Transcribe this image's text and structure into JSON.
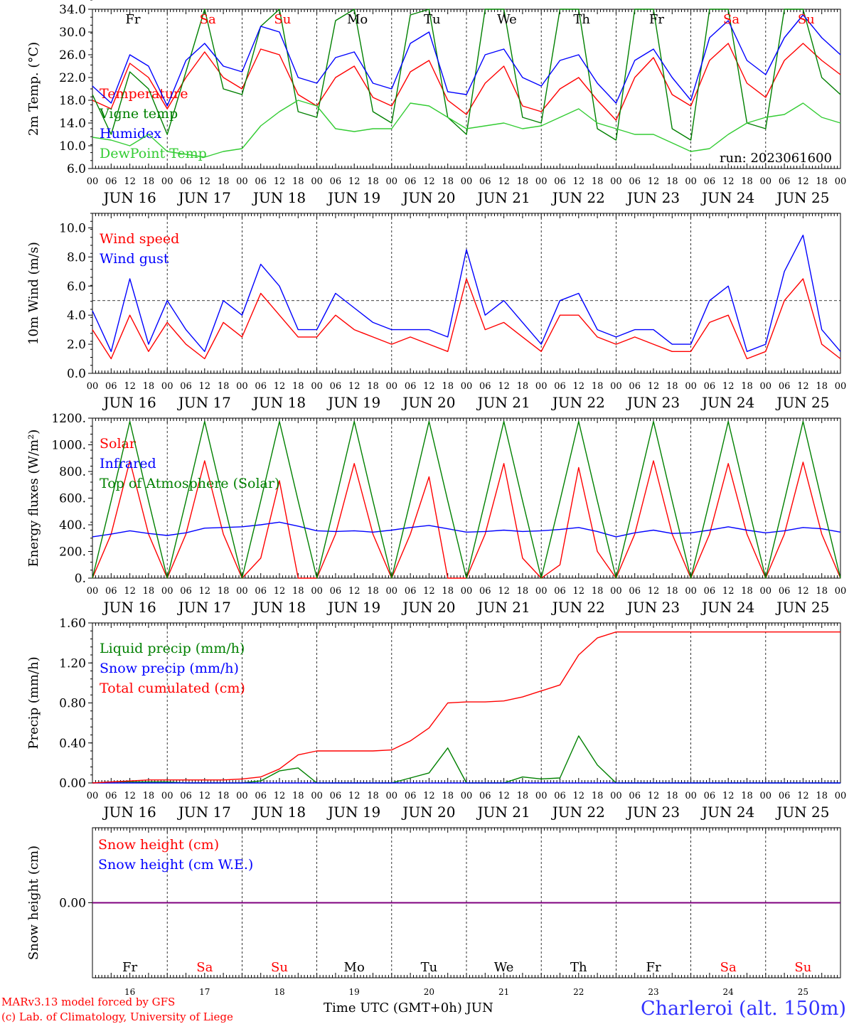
{
  "colors": {
    "red": "#ff0000",
    "green": "#008000",
    "blue": "#0000ff",
    "lime": "#33cc33",
    "purple": "#7f007f"
  },
  "hour_labels": [
    "00",
    "06",
    "12",
    "18"
  ],
  "end_hour_label": "00",
  "date_labels": [
    "JUN 16",
    "JUN 17",
    "JUN 18",
    "JUN 19",
    "JUN 20",
    "JUN 21",
    "JUN 22",
    "JUN 23",
    "JUN 24",
    "JUN 25"
  ],
  "weekdays": [
    {
      "label": "Fr",
      "weekend": false
    },
    {
      "label": "Sa",
      "weekend": true
    },
    {
      "label": "Su",
      "weekend": true
    },
    {
      "label": "Mo",
      "weekend": false
    },
    {
      "label": "Tu",
      "weekend": false
    },
    {
      "label": "We",
      "weekend": false
    },
    {
      "label": "Th",
      "weekend": false
    },
    {
      "label": "Fr",
      "weekend": false
    },
    {
      "label": "Sa",
      "weekend": true
    },
    {
      "label": "Su",
      "weekend": true
    }
  ],
  "day_numbers": [
    "16",
    "17",
    "18",
    "19",
    "20",
    "21",
    "22",
    "23",
    "24",
    "25"
  ],
  "run_label": "run: 2023061600",
  "footer": {
    "credit_1": "MARv3.13 model forced by GFS",
    "credit_2": "(c) Lab. of Climatology, University of Liege",
    "time_axis": "Time UTC (GMT+0h) JUN",
    "station": "Charleroi (alt. 150m)"
  },
  "chart_data": [
    {
      "type": "line",
      "ylabel": "2m Temp. (°C)",
      "ylim": [
        6.0,
        34.0
      ],
      "yticks": [
        "6.0",
        "10.0",
        "14.0",
        "18.0",
        "22.0",
        "26.0",
        "30.0",
        "34.0"
      ],
      "x_unit": "hours since JUN 16 00 UTC",
      "x": [
        0,
        6,
        12,
        18,
        24,
        30,
        36,
        42,
        48,
        54,
        60,
        66,
        72,
        78,
        84,
        90,
        96,
        102,
        108,
        114,
        120,
        126,
        132,
        138,
        144,
        150,
        156,
        162,
        168,
        174,
        180,
        186,
        192,
        198,
        204,
        210,
        216,
        222,
        228,
        234,
        240
      ],
      "series": [
        {
          "name": "Temperature",
          "color": "red",
          "values": [
            18,
            16.5,
            24.5,
            22,
            16.5,
            22,
            26.5,
            22,
            20,
            27,
            26,
            19,
            17,
            22,
            24,
            18.5,
            17,
            23,
            25,
            18,
            15.5,
            21,
            24,
            17,
            16,
            20,
            22,
            18,
            14.5,
            22,
            25.5,
            19,
            17,
            25,
            28,
            21,
            18.5,
            25,
            28,
            25,
            22.5
          ]
        },
        {
          "name": "Vigne temp",
          "color": "green",
          "values": [
            19,
            12,
            23,
            20,
            12,
            23,
            34,
            20,
            19,
            31,
            34,
            16,
            15,
            32,
            34,
            16,
            14,
            33,
            34,
            15,
            12,
            34,
            34,
            15,
            14,
            34,
            34,
            13,
            11,
            34,
            34,
            13,
            11,
            34,
            34,
            14,
            13,
            34,
            34,
            22,
            19
          ]
        },
        {
          "name": "Humidex",
          "color": "blue",
          "values": [
            20.5,
            17.5,
            26,
            24,
            17,
            25,
            28,
            24,
            23,
            31,
            30,
            22,
            21,
            25.5,
            26.5,
            21,
            20,
            28,
            30,
            19.5,
            19,
            26,
            27,
            22,
            20.5,
            25,
            26,
            21,
            17.5,
            25,
            27,
            22,
            18,
            29,
            32,
            25,
            22.5,
            29,
            33,
            29,
            26
          ]
        },
        {
          "name": "DewPoint Temp",
          "color": "lime",
          "values": [
            11.5,
            11,
            10,
            12,
            9,
            8.5,
            8,
            9,
            9.5,
            13.5,
            16,
            18,
            17,
            13,
            12.5,
            13,
            13,
            17.5,
            17,
            15,
            13,
            13.5,
            14,
            13,
            13.5,
            15,
            16.5,
            14,
            13,
            12,
            12,
            10.5,
            9,
            9.5,
            12,
            14,
            15,
            15.5,
            17.5,
            15,
            14
          ]
        }
      ]
    },
    {
      "type": "line",
      "ylabel": "10m Wind (m/s)",
      "ylim": [
        0.0,
        11.0
      ],
      "yticks": [
        "0.0",
        "2.0",
        "4.0",
        "6.0",
        "8.0",
        "10.0"
      ],
      "reference_line": 5.0,
      "x": [
        0,
        6,
        12,
        18,
        24,
        30,
        36,
        42,
        48,
        54,
        60,
        66,
        72,
        78,
        84,
        90,
        96,
        102,
        108,
        114,
        120,
        126,
        132,
        138,
        144,
        150,
        156,
        162,
        168,
        174,
        180,
        186,
        192,
        198,
        204,
        210,
        216,
        222,
        228,
        234,
        240
      ],
      "series": [
        {
          "name": "Wind speed",
          "color": "red",
          "values": [
            3,
            1,
            4,
            1.5,
            3.5,
            2,
            1,
            3.5,
            2.5,
            5.5,
            4,
            2.5,
            2.5,
            4,
            3,
            2.5,
            2,
            2.5,
            2,
            1.5,
            6.5,
            3,
            3.5,
            2.5,
            1.5,
            4,
            4,
            2.5,
            2,
            2.5,
            2,
            1.5,
            1.5,
            3.5,
            4,
            1,
            1.5,
            5,
            6.5,
            2,
            1
          ]
        },
        {
          "name": "Wind gust",
          "color": "blue",
          "values": [
            4.3,
            1.5,
            6.5,
            2,
            5,
            3,
            1.5,
            5,
            4,
            7.5,
            6,
            3,
            3,
            5.5,
            4.5,
            3.5,
            3,
            3,
            3,
            2.5,
            8.5,
            4,
            5,
            3.5,
            2,
            5,
            5.5,
            3,
            2.5,
            3,
            3,
            2,
            2,
            5,
            6,
            1.5,
            2,
            7,
            9.5,
            3,
            1.5
          ]
        }
      ]
    },
    {
      "type": "line",
      "ylabel": "Energy fluxes (W/m²)",
      "ylim": [
        0,
        1200
      ],
      "yticks": [
        "0.",
        "200.",
        "400.",
        "600.",
        "800.",
        "1000.",
        "1200."
      ],
      "x": [
        0,
        6,
        12,
        18,
        24,
        30,
        36,
        42,
        48,
        54,
        60,
        66,
        72,
        78,
        84,
        90,
        96,
        102,
        108,
        114,
        120,
        126,
        132,
        138,
        144,
        150,
        156,
        162,
        168,
        174,
        180,
        186,
        192,
        198,
        204,
        210,
        216,
        222,
        228,
        234,
        240
      ],
      "series": [
        {
          "name": "Solar",
          "color": "red",
          "values": [
            0,
            330,
            880,
            330,
            0,
            330,
            880,
            330,
            0,
            150,
            730,
            0,
            0,
            330,
            860,
            330,
            0,
            330,
            760,
            0,
            0,
            330,
            860,
            150,
            0,
            100,
            830,
            200,
            0,
            330,
            880,
            330,
            0,
            330,
            860,
            330,
            0,
            330,
            870,
            330,
            0
          ]
        },
        {
          "name": "Infrared",
          "color": "blue",
          "values": [
            310,
            330,
            355,
            335,
            320,
            340,
            375,
            380,
            385,
            400,
            420,
            390,
            355,
            350,
            355,
            345,
            360,
            380,
            395,
            370,
            345,
            350,
            360,
            350,
            355,
            365,
            380,
            350,
            310,
            340,
            360,
            335,
            340,
            360,
            385,
            360,
            340,
            355,
            380,
            370,
            345
          ]
        },
        {
          "name": "Top of Atmosphere (Solar)",
          "color": "green",
          "values": [
            0,
            580,
            1175,
            580,
            0,
            580,
            1175,
            580,
            0,
            580,
            1175,
            580,
            0,
            580,
            1175,
            580,
            0,
            580,
            1175,
            580,
            0,
            580,
            1175,
            580,
            0,
            580,
            1175,
            580,
            0,
            580,
            1175,
            580,
            0,
            580,
            1175,
            580,
            0,
            580,
            1175,
            580,
            0
          ]
        }
      ]
    },
    {
      "type": "line",
      "ylabel": "Precip (mm/h)",
      "ylim": [
        0.0,
        1.6
      ],
      "yticks": [
        "0.00",
        "0.40",
        "0.80",
        "1.20",
        "1.60"
      ],
      "x": [
        0,
        6,
        12,
        18,
        24,
        30,
        36,
        42,
        48,
        54,
        60,
        66,
        72,
        78,
        84,
        90,
        96,
        102,
        108,
        114,
        120,
        126,
        132,
        138,
        144,
        150,
        156,
        162,
        168,
        174,
        180,
        186,
        192,
        198,
        204,
        210,
        216,
        222,
        228,
        234,
        240
      ],
      "series": [
        {
          "name": "Liquid precip (mm/h)",
          "color": "green",
          "values": [
            0,
            0.01,
            0.01,
            0.01,
            0.01,
            0,
            0,
            0,
            0,
            0.02,
            0.12,
            0.15,
            0,
            0,
            0,
            0,
            0,
            0.05,
            0.1,
            0.35,
            0,
            0,
            0,
            0.06,
            0.04,
            0.05,
            0.47,
            0.18,
            0,
            0,
            0,
            0,
            0,
            0,
            0,
            0,
            0,
            0,
            0,
            0,
            0
          ]
        },
        {
          "name": "Snow precip (mm/h)",
          "color": "blue",
          "values": [
            0,
            0,
            0,
            0,
            0,
            0,
            0,
            0,
            0,
            0,
            0,
            0,
            0,
            0,
            0,
            0,
            0,
            0,
            0,
            0,
            0,
            0,
            0,
            0,
            0,
            0,
            0,
            0,
            0,
            0,
            0,
            0,
            0,
            0,
            0,
            0,
            0,
            0,
            0,
            0,
            0
          ]
        },
        {
          "name": "Total cumulated (cm)",
          "color": "red",
          "values": [
            0,
            0.01,
            0.02,
            0.03,
            0.03,
            0.03,
            0.03,
            0.03,
            0.04,
            0.06,
            0.14,
            0.28,
            0.32,
            0.32,
            0.32,
            0.32,
            0.33,
            0.42,
            0.55,
            0.8,
            0.81,
            0.81,
            0.82,
            0.86,
            0.92,
            0.98,
            1.28,
            1.45,
            1.51,
            1.51,
            1.51,
            1.51,
            1.51,
            1.51,
            1.51,
            1.51,
            1.51,
            1.51,
            1.51,
            1.51,
            1.51
          ]
        }
      ]
    },
    {
      "type": "line",
      "ylabel": "Snow height (cm)",
      "ylim": [
        -1.0,
        1.0
      ],
      "yticks": [
        "0.00"
      ],
      "x": [
        0,
        240
      ],
      "series": [
        {
          "name": "Snow height (cm)",
          "color": "red",
          "values": [
            0,
            0
          ]
        },
        {
          "name": "Snow height (cm W.E.)",
          "color": "blue",
          "values": [
            0,
            0
          ]
        }
      ]
    }
  ]
}
